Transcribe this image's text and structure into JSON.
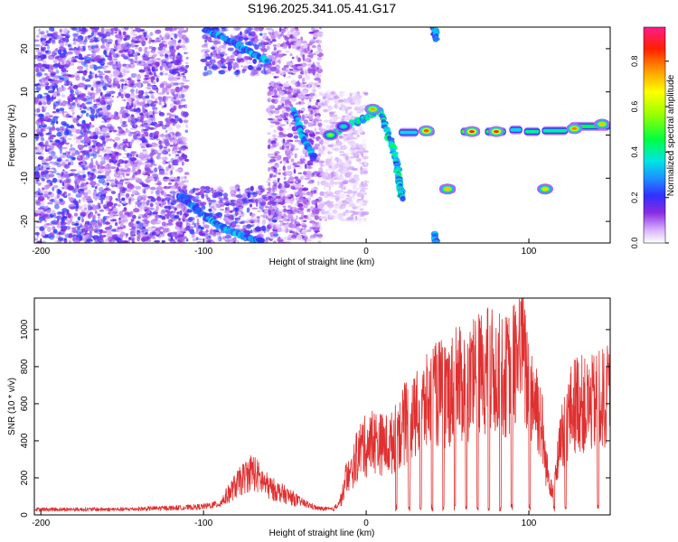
{
  "figure": {
    "title": "S196.2025.341.05.41.G17"
  },
  "chart_data": [
    {
      "type": "heatmap",
      "xlabel": "Height of straight line (km)",
      "ylabel": "Frequency (Hz)",
      "xlim": [
        -204,
        150
      ],
      "ylim": [
        -25,
        25
      ],
      "xticks": [
        -200,
        -100,
        0,
        100
      ],
      "yticks": [
        -20,
        -10,
        0,
        10,
        20
      ],
      "colorbar": {
        "label": "Normalized spectral amplitude",
        "range": [
          0,
          0.95
        ],
        "ticks": [
          0.0,
          0.2,
          0.4,
          0.6,
          0.8
        ]
      },
      "features": [
        {
          "x": [
            -203,
            -160
          ],
          "y": [
            -25,
            25
          ],
          "level": 0.12
        },
        {
          "x": [
            -160,
            -110
          ],
          "y": [
            -25,
            25
          ],
          "level": 0.1
        },
        {
          "x": [
            -100,
            -60
          ],
          "y": [
            14,
            25
          ],
          "level": 0.12
        },
        {
          "x": [
            -115,
            -55
          ],
          "y": [
            -25,
            -12
          ],
          "level": 0.12
        },
        {
          "x": [
            -60,
            -28
          ],
          "y": [
            -25,
            25
          ],
          "level": 0.08
        },
        {
          "x": [
            -28,
            0
          ],
          "y": [
            -20,
            10
          ],
          "level": 0.04
        }
      ],
      "tracks": [
        {
          "points": [
            [
              -99,
              24.5
            ],
            [
              -90,
              23
            ],
            [
              -80,
              21
            ],
            [
              -70,
              19
            ],
            [
              -60,
              17
            ]
          ],
          "level": 0.25
        },
        {
          "points": [
            [
              -115,
              -14
            ],
            [
              -105,
              -17
            ],
            [
              -95,
              -20
            ],
            [
              -85,
              -22
            ],
            [
              -75,
              -23.5
            ],
            [
              -65,
              -24.5
            ]
          ],
          "level": 0.25
        },
        {
          "points": [
            [
              -45,
              6
            ],
            [
              -38,
              -1
            ],
            [
              -32,
              -5.5
            ]
          ],
          "level": 0.25
        },
        {
          "points": [
            [
              -22,
              0
            ],
            [
              -12,
              2
            ],
            [
              0,
              4
            ],
            [
              8,
              6
            ],
            [
              12,
              2
            ],
            [
              18,
              -5
            ],
            [
              20,
              -10
            ],
            [
              22,
              -15
            ]
          ],
          "level": 0.3
        },
        {
          "points": [
            [
              42,
              25
            ],
            [
              43,
              22
            ]
          ],
          "level": 0.25
        },
        {
          "points": [
            [
              42,
              -23
            ],
            [
              43,
              -25
            ]
          ],
          "level": 0.25
        }
      ],
      "blobs": [
        {
          "x": -22,
          "y": 0,
          "level": 0.55
        },
        {
          "x": -14,
          "y": 2,
          "level": 0.4
        },
        {
          "x": 4,
          "y": 6,
          "level": 0.75
        },
        {
          "x": 37,
          "y": 1,
          "level": 0.82
        },
        {
          "x": 50,
          "y": -12.5,
          "level": 0.72
        },
        {
          "x": 65,
          "y": 0.8,
          "level": 0.9
        },
        {
          "x": 80,
          "y": 0.8,
          "level": 0.85
        },
        {
          "x": 110,
          "y": -12.5,
          "level": 0.7
        },
        {
          "x": 128,
          "y": 1.5,
          "level": 0.78
        },
        {
          "x": 145,
          "y": 2.5,
          "level": 0.72
        }
      ],
      "bands": [
        {
          "x": [
            20,
            32
          ],
          "y": 0.6,
          "level": 0.35
        },
        {
          "x": [
            33,
            42
          ],
          "y": 0.8,
          "level": 0.5
        },
        {
          "x": [
            45,
            55
          ],
          "y": -12.5,
          "level": 0.35
        },
        {
          "x": [
            58,
            70
          ],
          "y": 0.8,
          "level": 0.5
        },
        {
          "x": [
            73,
            86
          ],
          "y": 0.8,
          "level": 0.45
        },
        {
          "x": [
            88,
            96
          ],
          "y": 1.2,
          "level": 0.35
        },
        {
          "x": [
            97,
            107
          ],
          "y": 0.8,
          "level": 0.4
        },
        {
          "x": [
            108,
            124
          ],
          "y": 1,
          "level": 0.4
        },
        {
          "x": [
            125,
            150
          ],
          "y": 2,
          "level": 0.45
        }
      ]
    },
    {
      "type": "line",
      "xlabel": "Height of straight line (km)",
      "ylabel": "SNR (10 * v/v)",
      "xlim": [
        -204,
        150
      ],
      "ylim": [
        0,
        1170
      ],
      "xticks": [
        -200,
        -100,
        0,
        100
      ],
      "yticks": [
        0,
        200,
        400,
        600,
        800,
        1000
      ],
      "series": [
        {
          "color": "#e03030",
          "x": [
            -204,
            -190,
            -170,
            -150,
            -130,
            -110,
            -100,
            -90,
            -85,
            -80,
            -75,
            -70,
            -65,
            -60,
            -55,
            -50,
            -45,
            -40,
            -30,
            -20,
            -15,
            -12,
            -10,
            -8,
            -5,
            -2,
            0,
            5,
            10,
            15,
            20,
            25,
            30,
            35,
            40,
            45,
            50,
            55,
            60,
            65,
            70,
            75,
            80,
            85,
            90,
            95,
            96,
            97,
            100,
            105,
            108,
            110,
            112,
            115,
            120,
            125,
            130,
            135,
            140,
            145,
            150
          ],
          "y": [
            30,
            30,
            30,
            30,
            35,
            40,
            45,
            60,
            110,
            160,
            200,
            240,
            190,
            150,
            130,
            110,
            90,
            70,
            35,
            30,
            90,
            220,
            200,
            260,
            330,
            380,
            360,
            400,
            380,
            380,
            440,
            500,
            520,
            580,
            620,
            660,
            650,
            700,
            700,
            720,
            760,
            780,
            760,
            740,
            780,
            900,
            1150,
            800,
            700,
            600,
            480,
            300,
            200,
            150,
            400,
            550,
            620,
            580,
            600,
            620,
            640
          ]
        }
      ],
      "dips": [
        [
          18,
          19
        ],
        [
          26,
          27
        ],
        [
          33,
          34
        ],
        [
          40,
          41
        ],
        [
          47,
          48
        ],
        [
          54,
          55
        ],
        [
          61,
          62
        ],
        [
          68,
          69
        ],
        [
          75,
          76
        ],
        [
          82,
          83
        ],
        [
          89,
          90
        ],
        [
          100,
          101
        ],
        [
          115,
          116
        ],
        [
          122,
          123
        ],
        [
          142,
          143
        ]
      ]
    }
  ]
}
